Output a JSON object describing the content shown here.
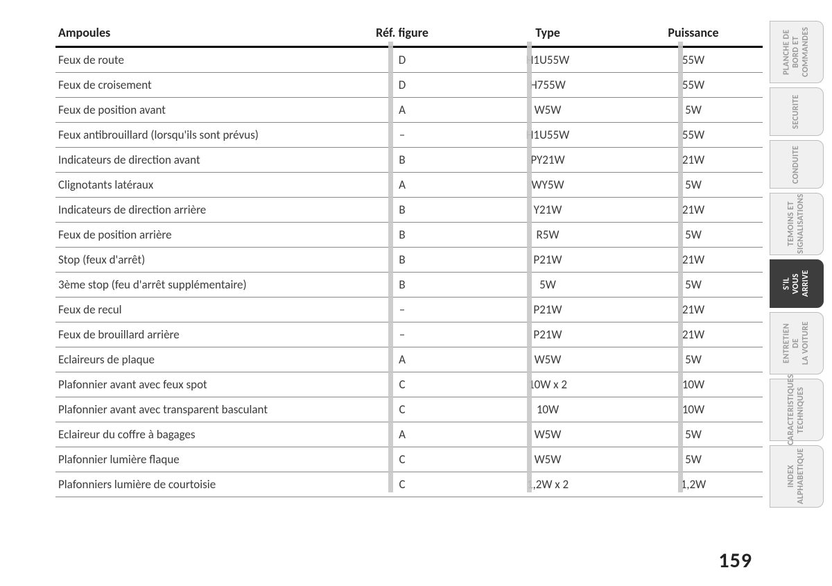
{
  "page_number": "159",
  "table": {
    "headers": [
      "Ampoules",
      "Réf. figure",
      "Type",
      "Puissance"
    ],
    "rows": [
      [
        "Feux de route",
        "D",
        "H1U55W",
        "55W"
      ],
      [
        "Feux de croisement",
        "D",
        "H755W",
        "55W"
      ],
      [
        "Feux de position avant",
        "A",
        "W5W",
        "5W"
      ],
      [
        "Feux antibrouillard (lorsqu'ils sont prévus)",
        "–",
        "H1U55W",
        "55W"
      ],
      [
        "Indicateurs de direction avant",
        "B",
        "PY21W",
        "21W"
      ],
      [
        "Clignotants latéraux",
        "A",
        "WY5W",
        "5W"
      ],
      [
        "Indicateurs de direction arrière",
        "B",
        "Y21W",
        "21W"
      ],
      [
        "Feux de position arrière",
        "B",
        "R5W",
        "5W"
      ],
      [
        "Stop (feux d'arrêt)",
        "B",
        "P21W",
        "21W"
      ],
      [
        "3ème stop (feu d'arrêt supplémentaire)",
        "B",
        "5W",
        "5W"
      ],
      [
        "Feux de recul",
        "–",
        "P21W",
        "21W"
      ],
      [
        "Feux de brouillard arrière",
        "–",
        "P21W",
        "21W"
      ],
      [
        "Eclaireurs de plaque",
        "A",
        "W5W",
        "5W"
      ],
      [
        "Plafonnier avant avec feux spot",
        "C",
        "10W x 2",
        "10W"
      ],
      [
        "Plafonnier avant avec transparent basculant",
        "C",
        "10W",
        "10W"
      ],
      [
        "Eclaireur du coffre à bagages",
        "A",
        "W5W",
        "5W"
      ],
      [
        "Plafonnier lumière flaque",
        "C",
        "W5W",
        "5W"
      ],
      [
        "Plafonniers lumière de courtoisie",
        "C",
        "1,2W x 2",
        "1,2W"
      ]
    ]
  },
  "tabs": [
    {
      "label": "PLANCHE DE\nBORD ET\nCOMMANDES",
      "active": false,
      "size": ""
    },
    {
      "label": "SECURITE",
      "active": false,
      "size": "short"
    },
    {
      "label": "CONDUITE",
      "active": false,
      "size": "short"
    },
    {
      "label": "TEMOINS ET\nSIGNALISATIONS",
      "active": false,
      "size": ""
    },
    {
      "label": "S'IL VOUS\nARRIVE",
      "active": true,
      "size": "short"
    },
    {
      "label": "ENTRETIEN DE\nLA VOITURE",
      "active": false,
      "size": ""
    },
    {
      "label": "CARACTERISTIQUES\nTECHNIQUES",
      "active": false,
      "size": ""
    },
    {
      "label": "INDEX\nALPHABETIQUE",
      "active": false,
      "size": ""
    }
  ],
  "colors": {
    "page_bg": "#ffffff",
    "text": "#3a3a3a",
    "header_rule": "#000000",
    "row_rule": "#888888",
    "separator": "#c8c8c8",
    "tab_inactive_bg": "#f0f0f0",
    "tab_inactive_fg": "#9a9a9a",
    "tab_active_bg": "#3d3d3d",
    "tab_active_fg": "#ffffff"
  }
}
